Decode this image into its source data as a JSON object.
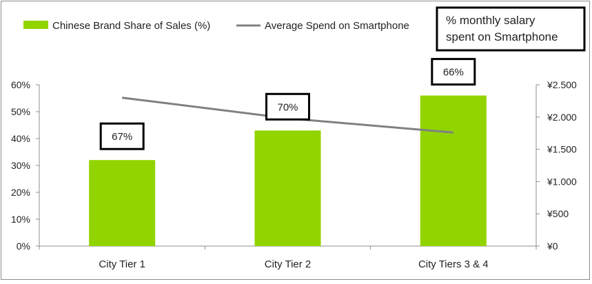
{
  "chart_data": {
    "type": "bar",
    "categories": [
      "City Tier 1",
      "City Tier 2",
      "City Tiers 3 & 4"
    ],
    "series": [
      {
        "name": "Chinese Brand Share of Sales (%)",
        "type": "bar",
        "axis": "left",
        "values": [
          32,
          43,
          56
        ],
        "color": "#92d400"
      },
      {
        "name": "Average Spend on Smartphone",
        "type": "line",
        "axis": "right",
        "values": [
          2300,
          1980,
          1760
        ],
        "color": "#808080"
      }
    ],
    "annotations": [
      "67%",
      "70%",
      "66%"
    ],
    "annotation_box_label": "% monthly salary spent on Smartphone",
    "y_left": {
      "ylim": [
        0,
        60
      ],
      "ticks": [
        0,
        10,
        20,
        30,
        40,
        50,
        60
      ],
      "tick_labels": [
        "0%",
        "10%",
        "20%",
        "30%",
        "40%",
        "50%",
        "60%"
      ]
    },
    "y_right": {
      "ylim": [
        0,
        2500
      ],
      "ticks": [
        0,
        500,
        1000,
        1500,
        2000,
        2500
      ],
      "tick_labels": [
        "¥0",
        "¥500",
        "¥1.000",
        "¥1.500",
        "¥2.000",
        "¥2.500"
      ]
    },
    "grid": false,
    "legend_position": "top-left"
  }
}
